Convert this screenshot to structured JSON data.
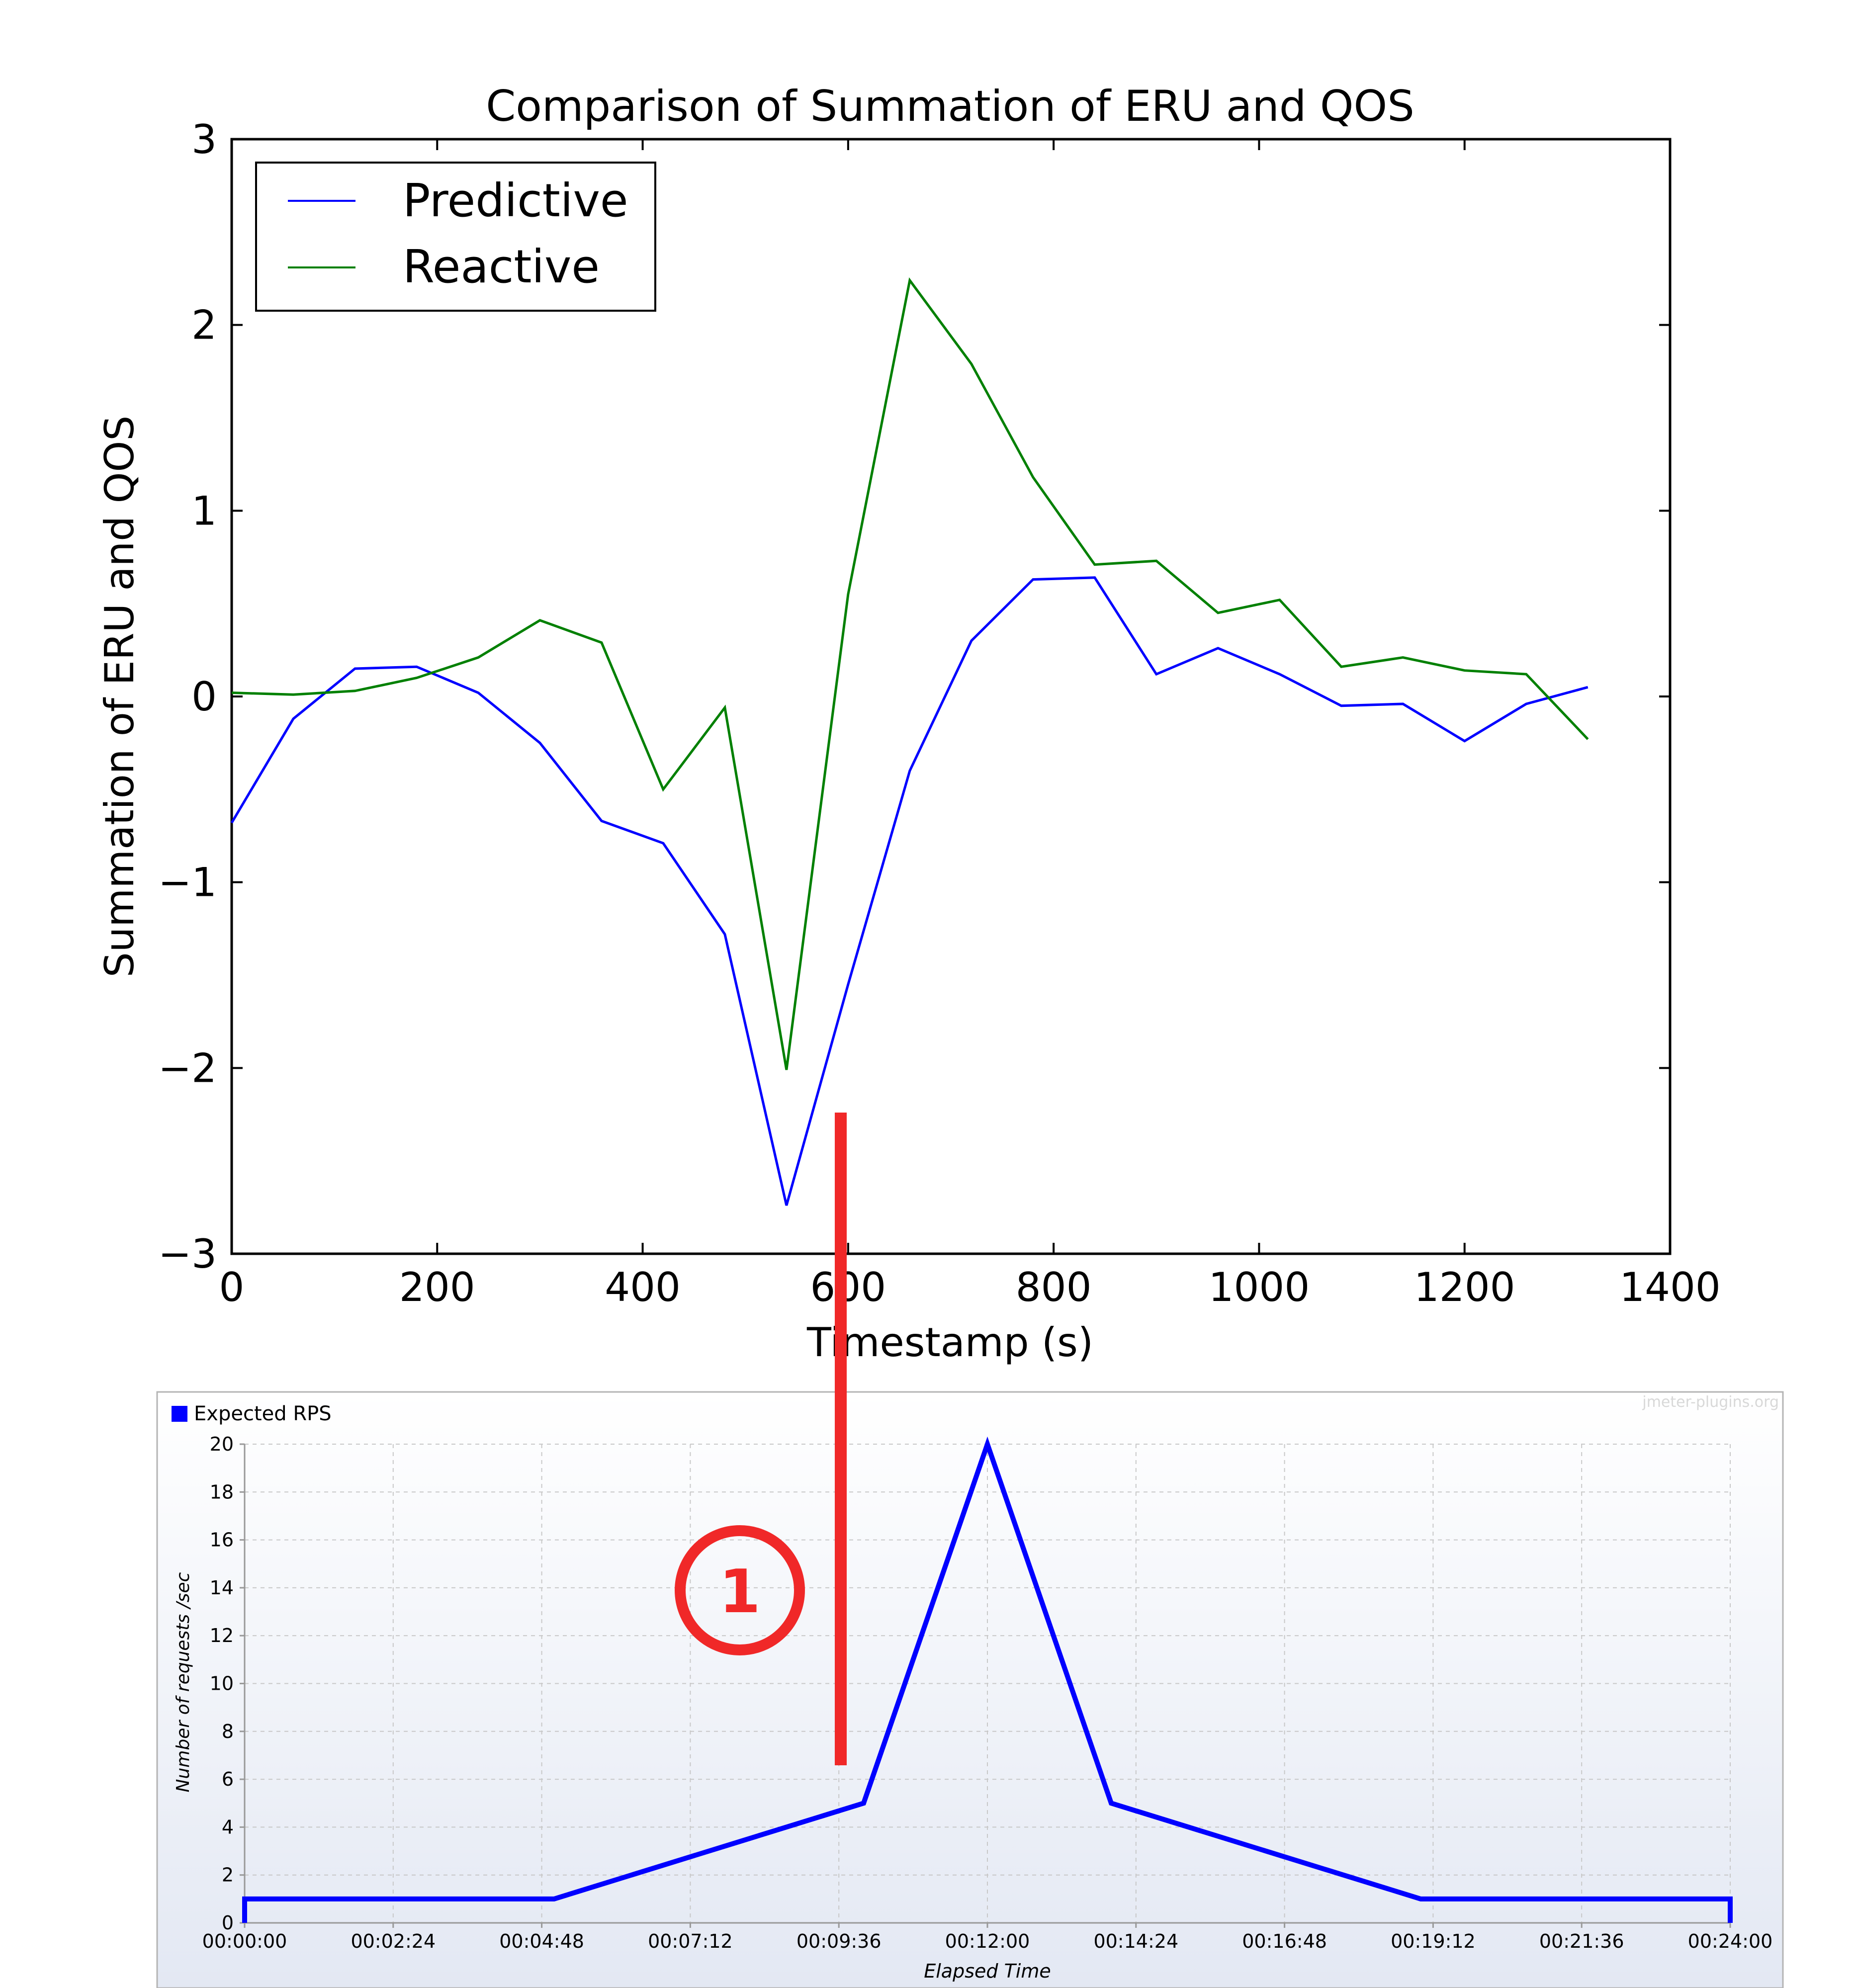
{
  "chart_data": [
    {
      "type": "line",
      "title": "Comparison of Summation of ERU and QOS",
      "xlabel": "Timestamp (s)",
      "ylabel": "Summation of ERU and QOS",
      "xlim": [
        0,
        1400
      ],
      "ylim": [
        -3,
        3
      ],
      "xticks": [
        0,
        200,
        400,
        600,
        800,
        1000,
        1200,
        1400
      ],
      "yticks": [
        -3,
        -2,
        -1,
        0,
        1,
        2,
        3
      ],
      "xtick_labels": [
        "0",
        "200",
        "400",
        "600",
        "800",
        "1000",
        "1200",
        "1400"
      ],
      "ytick_labels": [
        "−3",
        "−2",
        "−1",
        "0",
        "1",
        "2",
        "3"
      ],
      "legend_position": "top-left",
      "grid": false,
      "x": [
        0,
        60,
        120,
        180,
        240,
        300,
        360,
        420,
        480,
        540,
        600,
        660,
        720,
        780,
        840,
        900,
        960,
        1020,
        1080,
        1140,
        1200,
        1260,
        1320
      ],
      "series": [
        {
          "name": "Predictive",
          "color": "#0000ff",
          "values": [
            -0.68,
            -0.12,
            0.15,
            0.16,
            0.02,
            -0.25,
            -0.67,
            -0.79,
            -1.28,
            -2.74,
            -1.55,
            -0.4,
            0.3,
            0.63,
            0.64,
            0.12,
            0.26,
            0.12,
            -0.05,
            -0.04,
            -0.24,
            -0.04,
            0.05
          ]
        },
        {
          "name": "Reactive",
          "color": "#008000",
          "values": [
            0.02,
            0.01,
            0.03,
            0.1,
            0.21,
            0.41,
            0.29,
            -0.5,
            -0.06,
            -2.01,
            0.55,
            2.24,
            1.79,
            1.18,
            0.71,
            0.73,
            0.45,
            0.52,
            0.16,
            0.21,
            0.14,
            0.12,
            -0.23
          ]
        }
      ]
    },
    {
      "type": "line",
      "xlabel": "Elapsed Time",
      "ylabel": "Number of requests /sec",
      "xlim": [
        0,
        1440
      ],
      "ylim": [
        0,
        20
      ],
      "yticks": [
        0,
        2,
        4,
        6,
        8,
        10,
        12,
        14,
        16,
        18,
        20
      ],
      "ytick_labels": [
        "0",
        "2",
        "4",
        "6",
        "8",
        "10",
        "12",
        "14",
        "16",
        "18",
        "20"
      ],
      "xticks": [
        0,
        144,
        288,
        432,
        576,
        720,
        864,
        1008,
        1152,
        1296,
        1440
      ],
      "xtick_labels": [
        "00:00:00",
        "00:02:24",
        "00:04:48",
        "00:07:12",
        "00:09:36",
        "00:12:00",
        "00:14:24",
        "00:16:48",
        "00:19:12",
        "00:21:36",
        "00:24:00"
      ],
      "grid": true,
      "legend_position": "top-left",
      "credit": "jmeter-plugins.org",
      "series": [
        {
          "name": "Expected RPS",
          "color": "#0000ff",
          "x": [
            0,
            0,
            300,
            600,
            720,
            840,
            1140,
            1440,
            1440
          ],
          "values": [
            0,
            1,
            1,
            5,
            20,
            5,
            1,
            1,
            0
          ]
        }
      ]
    }
  ],
  "annotation": {
    "label": "1",
    "color": "#f02828"
  }
}
